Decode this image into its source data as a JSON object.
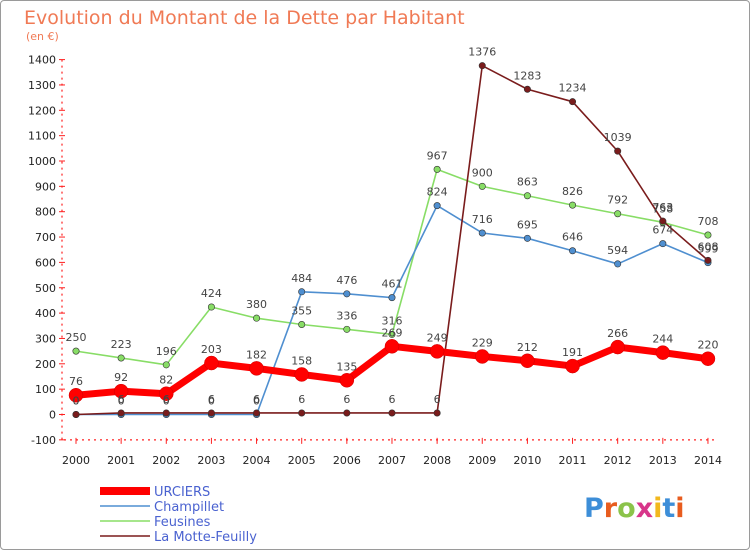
{
  "chart_data": {
    "type": "line",
    "title": "Evolution du Montant de la Dette par Habitant",
    "subtitle": "(en €)",
    "xlabel": "",
    "ylabel": "",
    "x": [
      "2000",
      "2001",
      "2002",
      "2003",
      "2004",
      "2005",
      "2006",
      "2007",
      "2008",
      "2009",
      "2010",
      "2011",
      "2012",
      "2013",
      "2014"
    ],
    "ylim": [
      -100,
      1400
    ],
    "yticks": [
      -100,
      0,
      100,
      200,
      300,
      400,
      500,
      600,
      700,
      800,
      900,
      1000,
      1100,
      1200,
      1300,
      1400
    ],
    "grid": false,
    "legend_position": "bottom-left",
    "series": [
      {
        "name": "URCIERS",
        "color": "#ff0000",
        "values": [
          76,
          92,
          82,
          203,
          182,
          158,
          135,
          269,
          249,
          229,
          212,
          191,
          266,
          244,
          220
        ]
      },
      {
        "name": "Champillet",
        "color": "#4f8fd0",
        "values": [
          0,
          0,
          0,
          0,
          0,
          484,
          476,
          461,
          824,
          716,
          695,
          646,
          594,
          674,
          599
        ]
      },
      {
        "name": "Feusines",
        "color": "#88dd66",
        "values": [
          250,
          223,
          196,
          424,
          380,
          355,
          336,
          316,
          967,
          900,
          863,
          826,
          792,
          758,
          708
        ]
      },
      {
        "name": "La Motte-Feuilly",
        "color": "#7a1c1c",
        "values": [
          0,
          6,
          6,
          6,
          6,
          6,
          6,
          6,
          6,
          1376,
          1283,
          1234,
          1039,
          763,
          608
        ]
      }
    ],
    "data_labels": {
      "URCIERS": [
        "76",
        "92",
        "82",
        "203",
        "182",
        "158",
        "135",
        "269",
        "249",
        "229",
        "212",
        "191",
        "266",
        "244",
        "220"
      ],
      "Champillet": [
        "0",
        "0",
        "0",
        "0",
        "0",
        "484",
        "476",
        "461",
        "824",
        "716",
        "695",
        "646",
        "594",
        "674",
        "599"
      ],
      "Feusines": [
        "250",
        "223",
        "196",
        "424",
        "380",
        "355",
        "336",
        "316",
        "967",
        "900",
        "863",
        "826",
        "792",
        "758",
        "708"
      ],
      "La Motte-Feuilly": [
        "0",
        "6",
        "6",
        "6",
        "6",
        "6",
        "6",
        "6",
        "6",
        "1376",
        "1283",
        "1234",
        "1039",
        "763",
        "608"
      ]
    }
  },
  "logo": {
    "text": "Proxiti",
    "letter_colors": [
      "#3d8ed8",
      "#e85c1e",
      "#8bc34a",
      "#d8368a",
      "#f2b81e",
      "#3d8ed8",
      "#e85c1e"
    ]
  }
}
